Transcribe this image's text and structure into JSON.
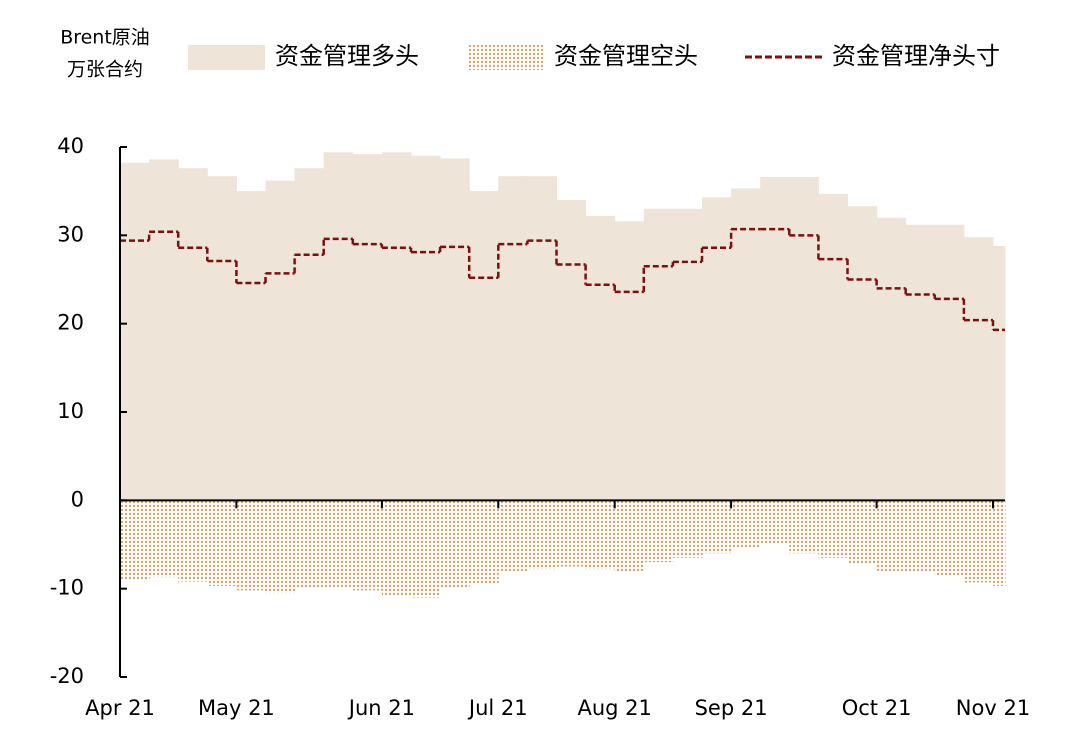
{
  "chart_data": {
    "type": "step-area",
    "y_label": [
      "Brent原油",
      "万张合约"
    ],
    "categories": [
      "Apr 21",
      null,
      null,
      null,
      "May 21",
      null,
      null,
      null,
      null,
      "Jun 21",
      null,
      null,
      null,
      "Jul 21",
      null,
      null,
      null,
      "Aug 21",
      null,
      null,
      null,
      "Sep 21",
      null,
      null,
      null,
      null,
      "Oct 21",
      null,
      null,
      null,
      "Nov 21"
    ],
    "series": [
      {
        "name": "资金管理多头",
        "color": "#efe4d8",
        "style": "area",
        "values": [
          38.2,
          38.6,
          37.6,
          36.7,
          35.0,
          36.2,
          37.6,
          39.4,
          39.2,
          39.4,
          39.0,
          38.7,
          35.0,
          36.7,
          36.7,
          34.0,
          32.2,
          31.6,
          33.0,
          33.0,
          34.3,
          35.3,
          36.6,
          36.6,
          34.7,
          33.3,
          32.0,
          31.2,
          31.2,
          29.8,
          28.8
        ]
      },
      {
        "name": "资金管理空头",
        "color": "#d2a56c",
        "style": "dotted-area",
        "values": [
          -9.0,
          -8.7,
          -9.2,
          -9.7,
          -10.2,
          -10.5,
          -10.0,
          -9.8,
          -10.2,
          -10.8,
          -11.0,
          -10.0,
          -9.5,
          -8.0,
          -7.8,
          -7.5,
          -7.8,
          -8.2,
          -7.0,
          -6.5,
          -6.0,
          -5.5,
          -5.0,
          -6.0,
          -6.5,
          -7.3,
          -8.0,
          -8.2,
          -8.5,
          -9.3,
          -9.7
        ]
      },
      {
        "name": "资金管理净头寸",
        "color": "#7a1010",
        "style": "dashed-line",
        "values": [
          29.4,
          30.4,
          28.6,
          27.1,
          24.6,
          25.7,
          27.8,
          29.6,
          29.0,
          28.6,
          28.1,
          28.7,
          25.2,
          29.0,
          29.4,
          26.7,
          24.4,
          23.6,
          26.5,
          27.0,
          28.6,
          30.7,
          30.7,
          30.0,
          27.3,
          25.0,
          24.0,
          23.3,
          22.8,
          20.4,
          19.3
        ]
      }
    ],
    "ylim": [
      -20,
      40
    ],
    "yticks": [
      -20,
      -10,
      0,
      10,
      20,
      30,
      40
    ],
    "grid": false
  }
}
